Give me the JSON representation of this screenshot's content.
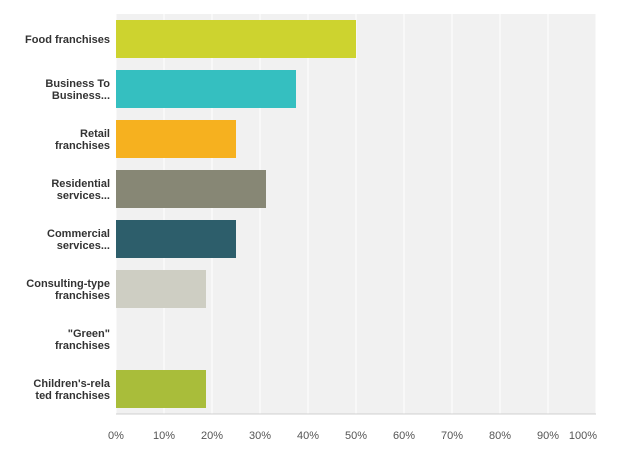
{
  "chart_data": {
    "type": "bar",
    "orientation": "horizontal",
    "categories": [
      [
        "Food franchises"
      ],
      [
        "Business To",
        "Business..."
      ],
      [
        "Retail",
        "franchises"
      ],
      [
        "Residential",
        "services..."
      ],
      [
        "Commercial",
        "services..."
      ],
      [
        "Consulting-type",
        "franchises"
      ],
      [
        "\"Green\"",
        "franchises"
      ],
      [
        "Children's-rela",
        "ted franchises"
      ]
    ],
    "values": [
      50,
      37.5,
      25,
      31.25,
      25,
      18.75,
      0,
      18.75
    ],
    "colors": [
      "#cdd32f",
      "#35bfc0",
      "#f6b11f",
      "#878775",
      "#2d5e6b",
      "#cecec3",
      "#ffffff",
      "#a9bd3a"
    ],
    "xlim": [
      0,
      100
    ],
    "xticks": [
      "0%",
      "10%",
      "20%",
      "30%",
      "40%",
      "50%",
      "60%",
      "70%",
      "80%",
      "90%",
      "100%"
    ],
    "grid": true
  }
}
